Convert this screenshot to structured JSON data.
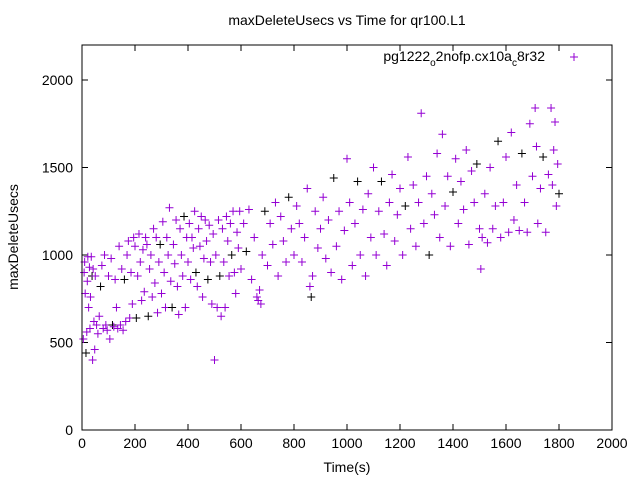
{
  "chart_data": {
    "type": "scatter",
    "title": "maxDeleteUsecs vs Time for qr100.L1",
    "xlabel": "Time(s)",
    "ylabel": "maxDeleteUsecs",
    "xlim": [
      0,
      2000
    ],
    "ylim": [
      0,
      2200
    ],
    "xticks": [
      0,
      200,
      400,
      600,
      800,
      1000,
      1200,
      1400,
      1600,
      1800,
      2000
    ],
    "yticks": [
      0,
      500,
      1000,
      1500,
      2000
    ],
    "legend": {
      "label_parts": [
        "pg1222",
        "o",
        "2nofp.cx10a",
        "c",
        "8r32"
      ],
      "placement": "top-right"
    },
    "color": "#9400d3",
    "series": [
      {
        "name": "pg1222_o2nofp.cx10a_c8r32",
        "points": [
          [
            5,
            520
          ],
          [
            8,
            900
          ],
          [
            10,
            960
          ],
          [
            12,
            780
          ],
          [
            15,
            440
          ],
          [
            18,
            560
          ],
          [
            20,
            850
          ],
          [
            22,
            990
          ],
          [
            25,
            700
          ],
          [
            28,
            930
          ],
          [
            30,
            580
          ],
          [
            32,
            760
          ],
          [
            35,
            990
          ],
          [
            38,
            880
          ],
          [
            40,
            400
          ],
          [
            42,
            920
          ],
          [
            45,
            620
          ],
          [
            48,
            460
          ],
          [
            50,
            880
          ],
          [
            55,
            600
          ],
          [
            60,
            550
          ],
          [
            65,
            650
          ],
          [
            70,
            820
          ],
          [
            75,
            940
          ],
          [
            80,
            580
          ],
          [
            85,
            1000
          ],
          [
            90,
            600
          ],
          [
            95,
            570
          ],
          [
            100,
            880
          ],
          [
            105,
            520
          ],
          [
            110,
            980
          ],
          [
            115,
            600
          ],
          [
            120,
            590
          ],
          [
            125,
            860
          ],
          [
            130,
            700
          ],
          [
            135,
            580
          ],
          [
            140,
            1050
          ],
          [
            145,
            600
          ],
          [
            150,
            920
          ],
          [
            155,
            570
          ],
          [
            160,
            860
          ],
          [
            165,
            620
          ],
          [
            170,
            1000
          ],
          [
            175,
            1080
          ],
          [
            180,
            640
          ],
          [
            185,
            900
          ],
          [
            190,
            720
          ],
          [
            195,
            1100
          ],
          [
            200,
            1050
          ],
          [
            205,
            640
          ],
          [
            210,
            880
          ],
          [
            215,
            1120
          ],
          [
            220,
            960
          ],
          [
            225,
            740
          ],
          [
            230,
            1030
          ],
          [
            235,
            790
          ],
          [
            240,
            1100
          ],
          [
            245,
            1060
          ],
          [
            250,
            650
          ],
          [
            255,
            920
          ],
          [
            260,
            1000
          ],
          [
            265,
            760
          ],
          [
            270,
            1150
          ],
          [
            275,
            840
          ],
          [
            280,
            1100
          ],
          [
            285,
            670
          ],
          [
            290,
            960
          ],
          [
            295,
            1060
          ],
          [
            300,
            780
          ],
          [
            305,
            1190
          ],
          [
            310,
            900
          ],
          [
            315,
            700
          ],
          [
            320,
            1100
          ],
          [
            325,
            1000
          ],
          [
            330,
            1270
          ],
          [
            335,
            850
          ],
          [
            340,
            700
          ],
          [
            345,
            1060
          ],
          [
            350,
            950
          ],
          [
            355,
            1200
          ],
          [
            360,
            820
          ],
          [
            365,
            660
          ],
          [
            370,
            1150
          ],
          [
            375,
            1000
          ],
          [
            380,
            880
          ],
          [
            385,
            1220
          ],
          [
            390,
            700
          ],
          [
            395,
            1100
          ],
          [
            400,
            960
          ],
          [
            405,
            1180
          ],
          [
            410,
            860
          ],
          [
            415,
            1100
          ],
          [
            420,
            1040
          ],
          [
            425,
            1250
          ],
          [
            430,
            900
          ],
          [
            435,
            820
          ],
          [
            440,
            1150
          ],
          [
            445,
            1050
          ],
          [
            450,
            1220
          ],
          [
            455,
            760
          ],
          [
            460,
            980
          ],
          [
            465,
            1200
          ],
          [
            470,
            1080
          ],
          [
            475,
            860
          ],
          [
            480,
            1170
          ],
          [
            485,
            960
          ],
          [
            490,
            720
          ],
          [
            495,
            1120
          ],
          [
            500,
            400
          ],
          [
            505,
            1000
          ],
          [
            510,
            700
          ],
          [
            515,
            1200
          ],
          [
            520,
            880
          ],
          [
            525,
            650
          ],
          [
            530,
            1150
          ],
          [
            535,
            960
          ],
          [
            540,
            700
          ],
          [
            545,
            1220
          ],
          [
            550,
            1080
          ],
          [
            555,
            880
          ],
          [
            560,
            1180
          ],
          [
            565,
            1000
          ],
          [
            570,
            1250
          ],
          [
            575,
            900
          ],
          [
            580,
            780
          ],
          [
            585,
            1130
          ],
          [
            590,
            1040
          ],
          [
            595,
            1250
          ],
          [
            600,
            920
          ],
          [
            610,
            1180
          ],
          [
            620,
            1020
          ],
          [
            630,
            1260
          ],
          [
            640,
            860
          ],
          [
            650,
            1100
          ],
          [
            660,
            760
          ],
          [
            665,
            740
          ],
          [
            670,
            800
          ],
          [
            675,
            720
          ],
          [
            680,
            1000
          ],
          [
            690,
            1250
          ],
          [
            700,
            940
          ],
          [
            710,
            1180
          ],
          [
            720,
            1060
          ],
          [
            730,
            1300
          ],
          [
            740,
            880
          ],
          [
            750,
            1220
          ],
          [
            760,
            1080
          ],
          [
            770,
            960
          ],
          [
            780,
            1330
          ],
          [
            790,
            1150
          ],
          [
            800,
            1000
          ],
          [
            810,
            1280
          ],
          [
            820,
            1180
          ],
          [
            830,
            960
          ],
          [
            840,
            1100
          ],
          [
            850,
            1380
          ],
          [
            860,
            820
          ],
          [
            865,
            760
          ],
          [
            870,
            880
          ],
          [
            880,
            1250
          ],
          [
            890,
            1040
          ],
          [
            900,
            1150
          ],
          [
            910,
            1330
          ],
          [
            920,
            980
          ],
          [
            930,
            1200
          ],
          [
            940,
            900
          ],
          [
            950,
            1440
          ],
          [
            960,
            1050
          ],
          [
            970,
            1250
          ],
          [
            980,
            860
          ],
          [
            990,
            1140
          ],
          [
            1000,
            1550
          ],
          [
            1010,
            1300
          ],
          [
            1020,
            940
          ],
          [
            1030,
            1180
          ],
          [
            1040,
            1420
          ],
          [
            1050,
            1000
          ],
          [
            1060,
            1260
          ],
          [
            1070,
            880
          ],
          [
            1080,
            1350
          ],
          [
            1090,
            1100
          ],
          [
            1100,
            1500
          ],
          [
            1110,
            1000
          ],
          [
            1120,
            1250
          ],
          [
            1130,
            1420
          ],
          [
            1140,
            1120
          ],
          [
            1150,
            940
          ],
          [
            1160,
            1300
          ],
          [
            1170,
            1460
          ],
          [
            1180,
            1080
          ],
          [
            1190,
            1230
          ],
          [
            1200,
            1380
          ],
          [
            1210,
            1000
          ],
          [
            1220,
            1280
          ],
          [
            1230,
            1560
          ],
          [
            1240,
            1150
          ],
          [
            1250,
            1400
          ],
          [
            1260,
            1050
          ],
          [
            1270,
            1300
          ],
          [
            1280,
            1810
          ],
          [
            1290,
            1180
          ],
          [
            1300,
            1450
          ],
          [
            1310,
            1000
          ],
          [
            1320,
            1350
          ],
          [
            1330,
            1230
          ],
          [
            1340,
            1580
          ],
          [
            1350,
            1100
          ],
          [
            1360,
            1690
          ],
          [
            1370,
            1280
          ],
          [
            1380,
            1450
          ],
          [
            1390,
            1050
          ],
          [
            1400,
            1360
          ],
          [
            1410,
            1550
          ],
          [
            1420,
            1180
          ],
          [
            1430,
            1420
          ],
          [
            1440,
            1260
          ],
          [
            1450,
            1600
          ],
          [
            1460,
            1060
          ],
          [
            1470,
            1480
          ],
          [
            1480,
            1300
          ],
          [
            1490,
            1520
          ],
          [
            1500,
            1150
          ],
          [
            1505,
            920
          ],
          [
            1510,
            1100
          ],
          [
            1520,
            1350
          ],
          [
            1530,
            1070
          ],
          [
            1540,
            1500
          ],
          [
            1550,
            1150
          ],
          [
            1560,
            1280
          ],
          [
            1570,
            1650
          ],
          [
            1580,
            1100
          ],
          [
            1590,
            1300
          ],
          [
            1600,
            1560
          ],
          [
            1610,
            1130
          ],
          [
            1620,
            1700
          ],
          [
            1630,
            1200
          ],
          [
            1640,
            1400
          ],
          [
            1650,
            1140
          ],
          [
            1660,
            1580
          ],
          [
            1670,
            1300
          ],
          [
            1680,
            1130
          ],
          [
            1690,
            1750
          ],
          [
            1700,
            1450
          ],
          [
            1710,
            1840
          ],
          [
            1715,
            1620
          ],
          [
            1720,
            1180
          ],
          [
            1730,
            1380
          ],
          [
            1740,
            1560
          ],
          [
            1750,
            1130
          ],
          [
            1760,
            1460
          ],
          [
            1770,
            1840
          ],
          [
            1775,
            1400
          ],
          [
            1780,
            1600
          ],
          [
            1785,
            1760
          ],
          [
            1790,
            1280
          ],
          [
            1795,
            1520
          ],
          [
            1800,
            1350
          ]
        ]
      }
    ]
  }
}
